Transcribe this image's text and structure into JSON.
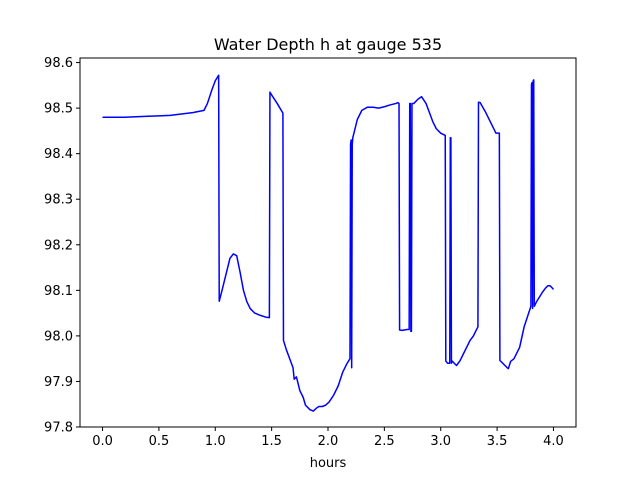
{
  "chart_data": {
    "type": "line",
    "title": "Water Depth h at gauge 535",
    "xlabel": "hours",
    "ylabel": "",
    "xlim": [
      -0.2,
      4.2
    ],
    "ylim": [
      97.8,
      98.61
    ],
    "x_ticks": [
      0.0,
      0.5,
      1.0,
      1.5,
      2.0,
      2.5,
      3.0,
      3.5,
      4.0
    ],
    "x_tick_labels": [
      "0.0",
      "0.5",
      "1.0",
      "1.5",
      "2.0",
      "2.5",
      "3.0",
      "3.5",
      "4.0"
    ],
    "y_ticks": [
      97.8,
      97.9,
      98.0,
      98.1,
      98.2,
      98.3,
      98.4,
      98.5,
      98.6
    ],
    "y_tick_labels": [
      "97.8",
      "97.9",
      "98.0",
      "98.1",
      "98.2",
      "98.3",
      "98.4",
      "98.5",
      "98.6"
    ],
    "grid": false,
    "legend": "none",
    "line_color": "#0000ff",
    "series": [
      {
        "x": [
          0.0,
          0.1,
          0.2,
          0.3,
          0.4,
          0.5,
          0.6,
          0.7,
          0.8,
          0.9,
          0.93,
          0.97,
          1.0,
          1.03,
          1.035,
          1.06,
          1.1,
          1.13,
          1.16,
          1.19,
          1.22,
          1.25,
          1.28,
          1.31,
          1.35,
          1.4,
          1.45,
          1.48,
          1.485,
          1.51,
          1.55,
          1.6,
          1.605,
          1.63,
          1.66,
          1.69,
          1.7,
          1.72,
          1.75,
          1.78,
          1.8,
          1.84,
          1.87,
          1.9,
          1.92,
          1.95,
          1.98,
          2.01,
          2.05,
          2.09,
          2.13,
          2.17,
          2.195,
          2.2,
          2.205,
          2.21,
          2.215,
          2.22,
          2.23,
          2.26,
          2.3,
          2.35,
          2.4,
          2.45,
          2.5,
          2.55,
          2.6,
          2.62,
          2.63,
          2.635,
          2.66,
          2.7,
          2.72,
          2.725,
          2.73,
          2.735,
          2.74,
          2.745,
          2.75,
          2.76,
          2.8,
          2.83,
          2.87,
          2.9,
          2.93,
          2.96,
          3.0,
          3.04,
          3.045,
          3.06,
          3.08,
          3.085,
          3.09,
          3.095,
          3.1,
          3.12,
          3.14,
          3.17,
          3.2,
          3.23,
          3.26,
          3.29,
          3.32,
          3.33,
          3.335,
          3.35,
          3.4,
          3.45,
          3.49,
          3.52,
          3.525,
          3.55,
          3.57,
          3.59,
          3.6,
          3.62,
          3.65,
          3.7,
          3.74,
          3.78,
          3.8,
          3.805,
          3.81,
          3.815,
          3.82,
          3.825,
          3.83,
          3.85,
          3.9,
          3.93,
          3.95,
          3.97,
          3.99,
          4.0
        ],
        "y": [
          98.48,
          98.48,
          98.48,
          98.481,
          98.482,
          98.483,
          98.484,
          98.487,
          98.49,
          98.495,
          98.51,
          98.54,
          98.56,
          98.572,
          98.076,
          98.1,
          98.14,
          98.17,
          98.18,
          98.176,
          98.14,
          98.1,
          98.075,
          98.06,
          98.05,
          98.045,
          98.041,
          98.04,
          98.535,
          98.525,
          98.51,
          98.489,
          97.99,
          97.97,
          97.95,
          97.93,
          97.905,
          97.91,
          97.88,
          97.865,
          97.848,
          97.838,
          97.835,
          97.842,
          97.845,
          97.845,
          97.848,
          97.855,
          97.87,
          97.89,
          97.92,
          97.94,
          97.95,
          98.42,
          98.43,
          97.93,
          98.42,
          98.435,
          98.445,
          98.475,
          98.495,
          98.502,
          98.502,
          98.5,
          98.503,
          98.507,
          98.51,
          98.512,
          98.51,
          98.013,
          98.012,
          98.014,
          98.014,
          98.51,
          98.51,
          98.01,
          98.01,
          98.51,
          98.51,
          98.51,
          98.52,
          98.525,
          98.51,
          98.49,
          98.47,
          98.455,
          98.445,
          98.44,
          97.945,
          97.94,
          97.94,
          98.435,
          98.435,
          97.94,
          97.945,
          97.94,
          97.935,
          97.945,
          97.96,
          97.975,
          97.99,
          98.0,
          98.015,
          98.02,
          98.513,
          98.512,
          98.49,
          98.465,
          98.445,
          98.445,
          97.946,
          97.94,
          97.935,
          97.93,
          97.928,
          97.944,
          97.95,
          97.975,
          98.02,
          98.05,
          98.065,
          98.552,
          98.556,
          98.06,
          98.56,
          98.562,
          98.065,
          98.075,
          98.095,
          98.105,
          98.11,
          98.11,
          98.105,
          98.102
        ]
      }
    ]
  }
}
